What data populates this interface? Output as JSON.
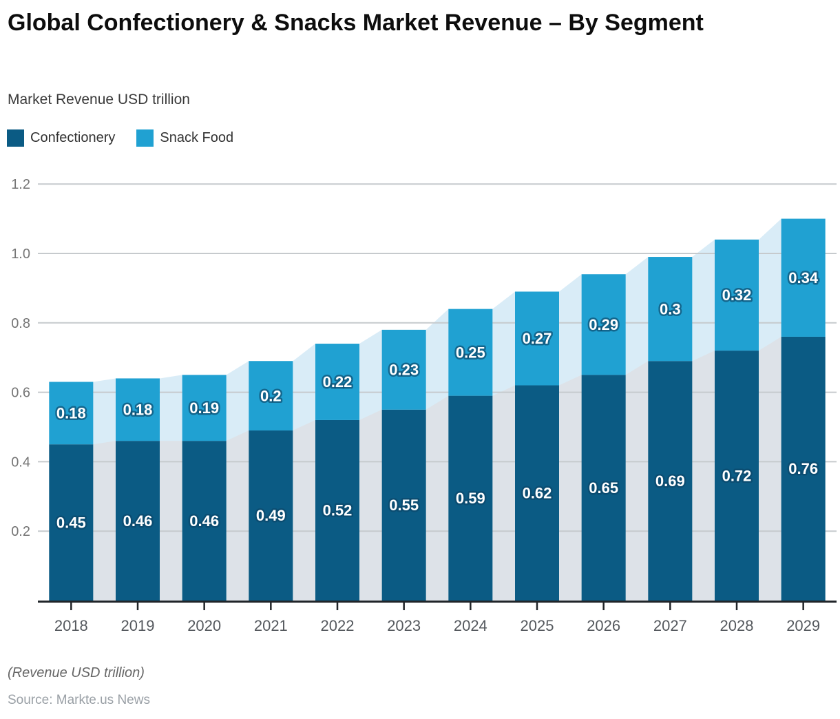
{
  "header": {
    "title": "Global Confectionery & Snacks Market Revenue – By Segment",
    "subtitle": "Market Revenue USD trillion"
  },
  "chart_data": {
    "type": "bar",
    "stacked": true,
    "title": "Global Confectionery & Snacks Market Revenue – By Segment",
    "ylabel": "Market Revenue USD trillion",
    "categories": [
      "2018",
      "2019",
      "2020",
      "2021",
      "2022",
      "2023",
      "2024",
      "2025",
      "2026",
      "2027",
      "2028",
      "2029"
    ],
    "series": [
      {
        "name": "Confectionery",
        "color": "#0b5b84",
        "area_color": "#dde2e8",
        "values": [
          0.45,
          0.46,
          0.46,
          0.49,
          0.52,
          0.55,
          0.59,
          0.62,
          0.65,
          0.69,
          0.72,
          0.76
        ]
      },
      {
        "name": "Snack Food",
        "color": "#20a1d2",
        "area_color": "#d9ecf7",
        "values": [
          0.18,
          0.18,
          0.19,
          0.2,
          0.22,
          0.23,
          0.25,
          0.27,
          0.29,
          0.3,
          0.32,
          0.34
        ]
      }
    ],
    "totals": [
      0.63,
      0.64,
      0.65,
      0.69,
      0.74,
      0.78,
      0.84,
      0.89,
      0.94,
      0.99,
      1.04,
      1.1
    ],
    "ylim": [
      0,
      1.2
    ],
    "yticks": [
      "0.2",
      "0.4",
      "0.6",
      "0.8",
      "1.0",
      "1.2"
    ],
    "grid": true,
    "legend_position": "top-left",
    "background_area": "lightened stacked area silhouette drawn behind bars"
  },
  "colors": {
    "gridline": "#c6cacd",
    "axis_line": "#212529",
    "y_tick_label": "#757575",
    "x_tick_label": "#55595e",
    "bar_value_label": "#ffffff",
    "bar_value_label_outline": "#0d4668"
  },
  "footer": {
    "note": "(Revenue USD trillion)",
    "source": "Source: Markte.us News"
  }
}
